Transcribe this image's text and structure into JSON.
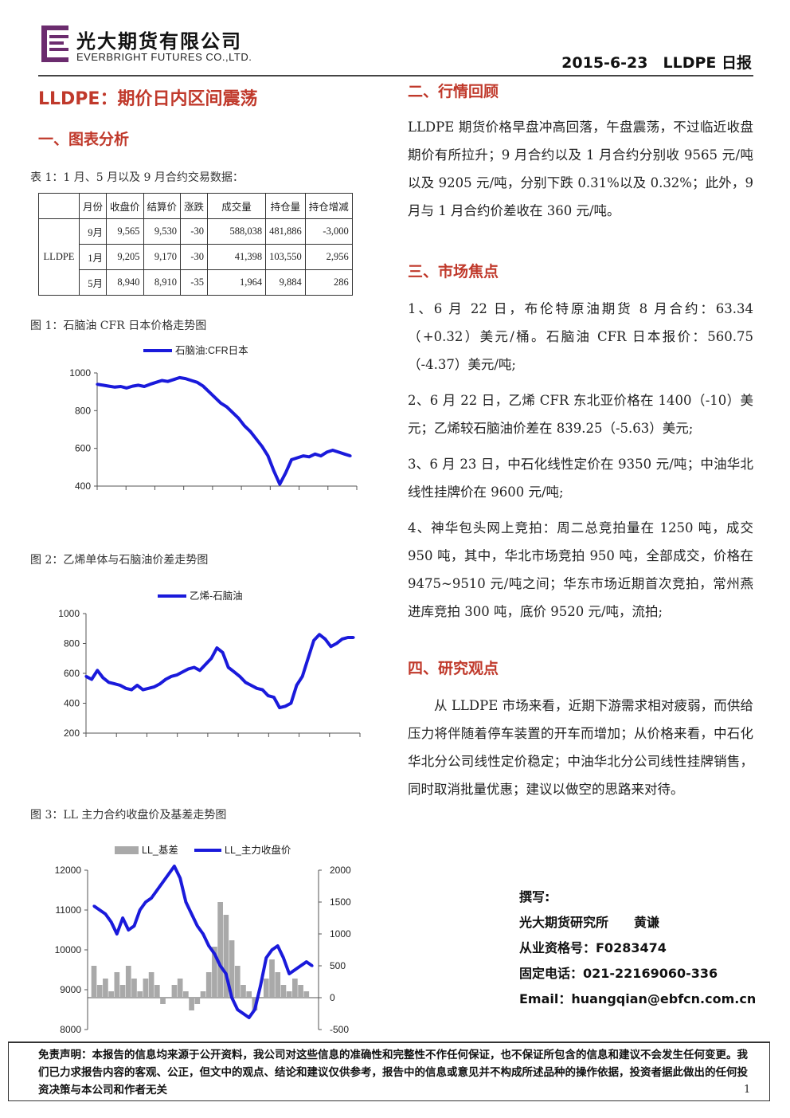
{
  "header": {
    "company_cn": "光大期货有限公司",
    "company_en": "EVERBRIGHT FUTURES CO.,LTD.",
    "date_title": "2015-6-23　LLDPE 日报",
    "brand_color": "#6b2c6e"
  },
  "title": "LLDPE：期价日内区间震荡",
  "sections": {
    "s1": "一、图表分析",
    "s2": "二、行情回顾",
    "s3": "三、市场焦点",
    "s4": "四、研究观点"
  },
  "table1": {
    "caption": "表 1：1 月、5 月以及 9 月合约交易数据：",
    "headers": [
      "月份",
      "收盘价",
      "结算价",
      "涨跌",
      "成交量",
      "持仓量",
      "持仓增减"
    ],
    "product": "LLDPE",
    "rows": [
      [
        "9月",
        "9,565",
        "9,530",
        "-30",
        "588,038",
        "481,886",
        "-3,000"
      ],
      [
        "1月",
        "9,205",
        "9,170",
        "-30",
        "41,398",
        "103,550",
        "2,956"
      ],
      [
        "5月",
        "8,940",
        "8,910",
        "-35",
        "1,964",
        "9,884",
        "286"
      ]
    ]
  },
  "figures": {
    "fig1_caption": "图 1：石脑油 CFR 日本价格走势图",
    "fig2_caption": "图 2：乙烯单体与石脑油价差走势图",
    "fig3_caption": "图 3：LL 主力合约收盘价及基差走势图"
  },
  "chart_data": [
    {
      "type": "line",
      "legend": [
        "石脑油:CFR日本"
      ],
      "series": [
        {
          "name": "石脑油:CFR日本",
          "values": [
            940,
            935,
            930,
            925,
            928,
            920,
            930,
            935,
            928,
            940,
            950,
            960,
            955,
            965,
            975,
            970,
            960,
            950,
            930,
            900,
            870,
            840,
            820,
            790,
            760,
            720,
            690,
            650,
            610,
            560,
            480,
            410,
            470,
            540,
            550,
            560,
            555,
            570,
            560,
            580,
            590,
            580,
            570,
            560
          ]
        }
      ],
      "ylim": [
        400,
        1000
      ],
      "yticks": [
        "400",
        "600",
        "800",
        "1000"
      ],
      "color": "#1a1adb"
    },
    {
      "type": "line",
      "legend": [
        "乙烯-石脑油"
      ],
      "series": [
        {
          "name": "乙烯-石脑油",
          "values": [
            580,
            560,
            620,
            570,
            540,
            530,
            520,
            500,
            490,
            520,
            490,
            500,
            510,
            530,
            560,
            580,
            590,
            610,
            630,
            640,
            620,
            660,
            700,
            770,
            740,
            640,
            610,
            580,
            540,
            520,
            500,
            490,
            450,
            440,
            370,
            380,
            400,
            520,
            580,
            700,
            820,
            860,
            830,
            780,
            800,
            830,
            840,
            840
          ]
        }
      ],
      "ylim": [
        200,
        1000
      ],
      "yticks": [
        "200",
        "400",
        "600",
        "800",
        "1000"
      ],
      "color": "#1a1adb"
    },
    {
      "type": "line",
      "legend": [
        "LL_基差",
        "LL_主力收盘价"
      ],
      "series": [
        {
          "name": "LL_主力收盘价",
          "values": [
            11100,
            11000,
            10900,
            10700,
            10400,
            10800,
            10500,
            10600,
            11000,
            11200,
            11300,
            11500,
            11700,
            11900,
            12100,
            11800,
            11200,
            10900,
            10600,
            10400,
            10100,
            9900,
            9600,
            9400,
            8800,
            8500,
            8400,
            8300,
            8500,
            9100,
            9800,
            10000,
            10100,
            9800,
            9400,
            9500,
            9600,
            9700,
            9600
          ]
        },
        {
          "name": "LL_基差",
          "values": [
            500,
            200,
            300,
            100,
            400,
            200,
            500,
            300,
            100,
            300,
            400,
            200,
            -100,
            0,
            200,
            300,
            100,
            -200,
            -100,
            100,
            400,
            800,
            1500,
            1300,
            900,
            500,
            200,
            100,
            -200,
            0,
            300,
            600,
            400,
            200,
            100,
            300,
            200,
            100,
            0
          ]
        }
      ],
      "ylim": [
        8000,
        12000
      ],
      "y2lim": [
        -500,
        2000
      ],
      "yticks": [
        "8000",
        "9000",
        "10000",
        "11000",
        "12000"
      ],
      "y2ticks": [
        "-500",
        "0",
        "500",
        "1000",
        "1500",
        "2000"
      ],
      "colors": [
        "#1a1adb",
        "#a9a9a9"
      ]
    }
  ],
  "review": {
    "text": "LLDPE 期货价格早盘冲高回落，午盘震荡，不过临近收盘期价有所拉升；9 月合约以及 1 月合约分别收 9565 元/吨以及 9205 元/吨，分别下跌 0.31%以及 0.32%；此外，9 月与 1 月合约价差收在 360 元/吨。"
  },
  "focus": [
    "1、6 月 22 日，布伦特原油期货 8 月合约：63.34（+0.32）美元/桶。石脑油 CFR 日本报价：560.75（-4.37）美元/吨;",
    "2、6 月 22 日，乙烯 CFR 东北亚价格在 1400（-10）美元；乙烯较石脑油价差在 839.25（-5.63）美元;",
    "3、6 月 23 日，中石化线性定价在 9350 元/吨；中油华北线性挂牌价在 9600 元/吨;",
    "4、神华包头网上竞拍：周二总竞拍量在 1250 吨，成交 950 吨，其中，华北市场竞拍 950 吨，全部成交，价格在 9475~9510 元/吨之间；华东市场近期首次竞拍，常州燕进库竞拍 300 吨，底价 9520 元/吨，流拍;"
  ],
  "view": {
    "text": "从 LLDPE 市场来看，近期下游需求相对疲弱，而供给压力将伴随着停车装置的开车而增加；从价格来看，中石化华北分公司线性定价稳定；中油华北分公司线性挂牌销售，同时取消批量优惠；建议以做空的思路来对待。"
  },
  "author": {
    "label": "撰写:",
    "org": "光大期货研究所　　黄谦",
    "license": "从业资格号：F0283474",
    "phone": "固定电话：021-22169060-336",
    "email": "Email：huangqian@ebfcn.com.cn"
  },
  "footer": {
    "disclaimer": "免责声明：本报告的信息均来源于公开资料，我公司对这些信息的准确性和完整性不作任何保证，也不保证所包含的信息和建议不会发生任何变更。我们已力求报告内容的客观、公正，但文中的观点、结论和建议仅供参考，报告中的信息或意见并不构成所述品种的操作依据，投资者据此做出的任何投资决策与本公司和作者无关",
    "page": "1"
  }
}
